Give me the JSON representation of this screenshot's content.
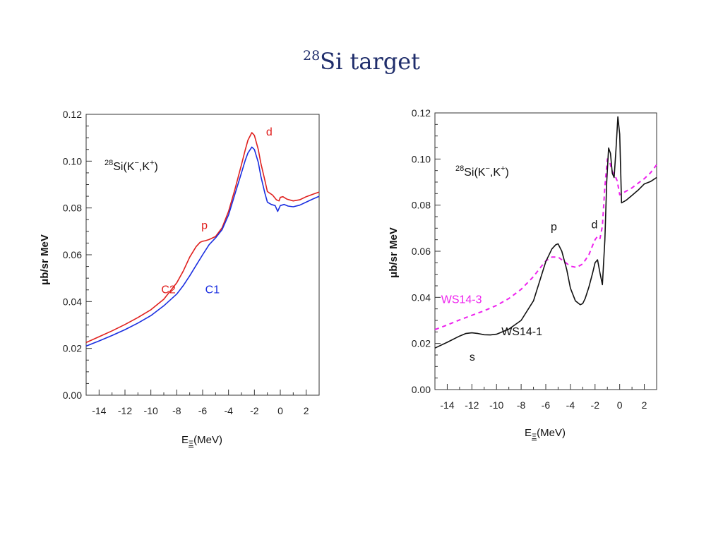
{
  "slide": {
    "title_sup": "28",
    "title_main": "Si target"
  },
  "chart_data": [
    {
      "type": "line",
      "reaction": {
        "mass": "28",
        "element": "Si(K",
        "m1": "−",
        "sep": ",K",
        "m2": "+",
        "close": ")"
      },
      "xlabel": {
        "pre": "E",
        "sub": "Ξ",
        "post": "(MeV)"
      },
      "ylabel": "μb/sr MeV",
      "xlim": [
        -15,
        3
      ],
      "ylim": [
        0,
        0.12
      ],
      "xticks": [
        "-14",
        "-12",
        "-10",
        "-8",
        "-6",
        "-4",
        "-2",
        "0",
        "2"
      ],
      "yticks": [
        "0.00",
        "0.02",
        "0.04",
        "0.06",
        "0.08",
        "0.10",
        "0.12"
      ],
      "grid": false,
      "series": [
        {
          "name": "C2",
          "color": "#e0201e",
          "dash": "none",
          "x": [
            -15,
            -14,
            -13,
            -12,
            -11,
            -10,
            -9,
            -8,
            -7.5,
            -7,
            -6.5,
            -6.2,
            -6,
            -5.8,
            -5.5,
            -5,
            -4.5,
            -4,
            -3.5,
            -3,
            -2.7,
            -2.5,
            -2.2,
            -2,
            -1.7,
            -1.5,
            -1.2,
            -1,
            -0.6,
            -0.3,
            -0.1,
            0,
            0.2,
            0.5,
            1,
            1.5,
            2,
            2.5,
            3
          ],
          "y": [
            0.0225,
            0.025,
            0.0275,
            0.0302,
            0.0332,
            0.0365,
            0.041,
            0.048,
            0.053,
            0.059,
            0.0635,
            0.0653,
            0.0658,
            0.066,
            0.0665,
            0.0678,
            0.0715,
            0.0785,
            0.088,
            0.0985,
            0.105,
            0.109,
            0.1122,
            0.111,
            0.105,
            0.099,
            0.092,
            0.087,
            0.0855,
            0.0835,
            0.083,
            0.0845,
            0.0848,
            0.0838,
            0.083,
            0.0835,
            0.0848,
            0.0858,
            0.0868
          ]
        },
        {
          "name": "C1",
          "color": "#1a2ee0",
          "dash": "none",
          "x": [
            -15,
            -14,
            -13,
            -12,
            -11,
            -10,
            -9,
            -8,
            -7.5,
            -7,
            -6.5,
            -6,
            -5.5,
            -5,
            -4.5,
            -4,
            -3.5,
            -3,
            -2.7,
            -2.5,
            -2.2,
            -2,
            -1.7,
            -1.5,
            -1.2,
            -1,
            -0.7,
            -0.4,
            -0.2,
            0,
            0.3,
            0.6,
            1,
            1.5,
            2,
            2.5,
            3
          ],
          "y": [
            0.021,
            0.0232,
            0.0255,
            0.028,
            0.0308,
            0.034,
            0.0382,
            0.0432,
            0.0468,
            0.051,
            0.0555,
            0.06,
            0.0643,
            0.0672,
            0.0707,
            0.077,
            0.086,
            0.095,
            0.1005,
            0.1035,
            0.106,
            0.105,
            0.0995,
            0.0935,
            0.0865,
            0.0825,
            0.0815,
            0.081,
            0.0785,
            0.081,
            0.0815,
            0.0808,
            0.0805,
            0.0812,
            0.0825,
            0.0838,
            0.085
          ]
        }
      ],
      "annotations": [
        {
          "text": "d",
          "x": -1.1,
          "y": 0.111,
          "color": "#e0201e"
        },
        {
          "text": "p",
          "x": -6.1,
          "y": 0.071,
          "color": "#e0201e"
        },
        {
          "text": "C2",
          "x": -9.2,
          "y": 0.0435,
          "color": "#e0201e"
        },
        {
          "text": "C1",
          "x": -5.8,
          "y": 0.0435,
          "color": "#1a2ee0"
        }
      ]
    },
    {
      "type": "line",
      "reaction": {
        "mass": "28",
        "element": "Si(K",
        "m1": "−",
        "sep": ",K",
        "m2": "+",
        "close": ")"
      },
      "xlabel": {
        "pre": "E",
        "sub": "Ξ",
        "post": "(MeV)"
      },
      "ylabel": "μb/sr MeV",
      "xlim": [
        -15,
        3
      ],
      "ylim": [
        0,
        0.12
      ],
      "xticks": [
        "-14",
        "-12",
        "-10",
        "-8",
        "-6",
        "-4",
        "-2",
        "0",
        "2"
      ],
      "yticks": [
        "0.00",
        "0.02",
        "0.04",
        "0.06",
        "0.08",
        "0.10",
        "0.12"
      ],
      "grid": false,
      "series": [
        {
          "name": "WS14-3",
          "color": "#ee22ee",
          "dash": "6,5",
          "x": [
            -15,
            -14,
            -13,
            -12,
            -11,
            -10,
            -9,
            -8,
            -7,
            -6.5,
            -6,
            -5.5,
            -5,
            -4.5,
            -4,
            -3.5,
            -3,
            -2.5,
            -2.2,
            -2,
            -1.8,
            -1.6,
            -1.4,
            -1.2,
            -1,
            -0.8,
            -0.6,
            -0.4,
            -0.2,
            0,
            0.2,
            0.5,
            1,
            1.5,
            2,
            2.5,
            3
          ],
          "y": [
            0.026,
            0.028,
            0.0302,
            0.0322,
            0.0342,
            0.0365,
            0.0395,
            0.0435,
            0.049,
            0.0525,
            0.0558,
            0.0575,
            0.0575,
            0.0555,
            0.0535,
            0.053,
            0.0545,
            0.0585,
            0.0625,
            0.065,
            0.0665,
            0.0655,
            0.071,
            0.088,
            0.1,
            0.0985,
            0.0945,
            0.093,
            0.0905,
            0.0845,
            0.085,
            0.086,
            0.0875,
            0.0895,
            0.0915,
            0.094,
            0.0975
          ]
        },
        {
          "name": "WS14-1",
          "color": "#111111",
          "dash": "none",
          "x": [
            -15,
            -14,
            -13,
            -12.5,
            -12,
            -11.5,
            -11,
            -10.5,
            -10,
            -9,
            -8,
            -7,
            -6.5,
            -6,
            -5.5,
            -5.2,
            -5,
            -4.7,
            -4.3,
            -4,
            -3.6,
            -3.2,
            -3,
            -2.8,
            -2.5,
            -2.2,
            -2,
            -1.8,
            -1.6,
            -1.4,
            -1.2,
            -1.05,
            -0.9,
            -0.75,
            -0.6,
            -0.45,
            -0.3,
            -0.15,
            0,
            0.15,
            0.5,
            1,
            1.5,
            2,
            2.5,
            3
          ],
          "y": [
            0.018,
            0.0205,
            0.0232,
            0.0243,
            0.0246,
            0.0243,
            0.0238,
            0.0237,
            0.024,
            0.0262,
            0.03,
            0.0385,
            0.047,
            0.0555,
            0.061,
            0.0628,
            0.0632,
            0.06,
            0.052,
            0.044,
            0.0385,
            0.0368,
            0.0373,
            0.0395,
            0.0445,
            0.0505,
            0.055,
            0.0563,
            0.0505,
            0.0455,
            0.065,
            0.09,
            0.1048,
            0.1025,
            0.0938,
            0.092,
            0.104,
            0.1183,
            0.1108,
            0.081,
            0.082,
            0.0842,
            0.0865,
            0.0892,
            0.0902,
            0.092
          ]
        }
      ],
      "annotations": [
        {
          "text": "p",
          "x": -5.6,
          "y": 0.069,
          "color": "#111111"
        },
        {
          "text": "d",
          "x": -2.3,
          "y": 0.07,
          "color": "#111111"
        },
        {
          "text": "WS14-3",
          "x": -14.5,
          "y": 0.0375,
          "color": "#ee22ee"
        },
        {
          "text": "WS14-1",
          "x": -9.6,
          "y": 0.0235,
          "color": "#111111"
        },
        {
          "text": "s",
          "x": -12.2,
          "y": 0.0125,
          "color": "#111111"
        }
      ]
    }
  ]
}
